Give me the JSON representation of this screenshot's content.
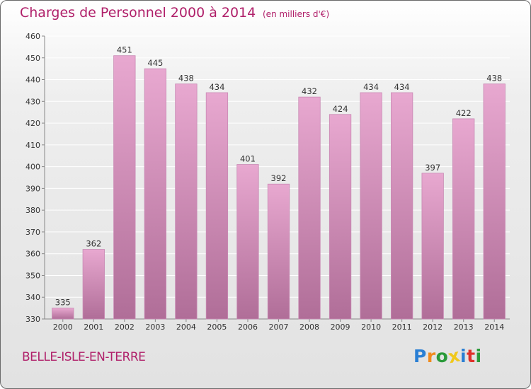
{
  "header": {
    "title": "Charges de Personnel 2000 à 2014",
    "unit": "(en milliers d'€)"
  },
  "footer": {
    "commune": "BELLE-ISLE-EN-TERRE",
    "logo": {
      "letters": [
        "P",
        "r",
        "o",
        "x",
        "i",
        "t",
        "i"
      ],
      "colors": [
        "#2a7fd4",
        "#f08a1c",
        "#2a9a3a",
        "#f0c81c",
        "#2a7fd4",
        "#e0302a",
        "#2a9a3a"
      ]
    }
  },
  "colors": {
    "bar_light": "#e8a8d0",
    "bar_dark": "#b06e98",
    "bar_edge": "#c989b4",
    "grid": "#ffffff",
    "axis": "#888888"
  },
  "chart_data": {
    "type": "bar",
    "title": "Charges de Personnel 2000 à 2014",
    "subtitle": "(en milliers d'€)",
    "xlabel": "",
    "ylabel": "",
    "categories": [
      "2000",
      "2001",
      "2002",
      "2003",
      "2004",
      "2005",
      "2006",
      "2007",
      "2008",
      "2009",
      "2010",
      "2011",
      "2012",
      "2013",
      "2014"
    ],
    "values": [
      335,
      362,
      451,
      445,
      438,
      434,
      401,
      392,
      432,
      424,
      434,
      434,
      397,
      422,
      438
    ],
    "ylim": [
      330,
      460
    ],
    "yticks": [
      330,
      340,
      350,
      360,
      370,
      380,
      390,
      400,
      410,
      420,
      430,
      440,
      450,
      460
    ],
    "grid": "horizontal",
    "data_labels": true
  }
}
